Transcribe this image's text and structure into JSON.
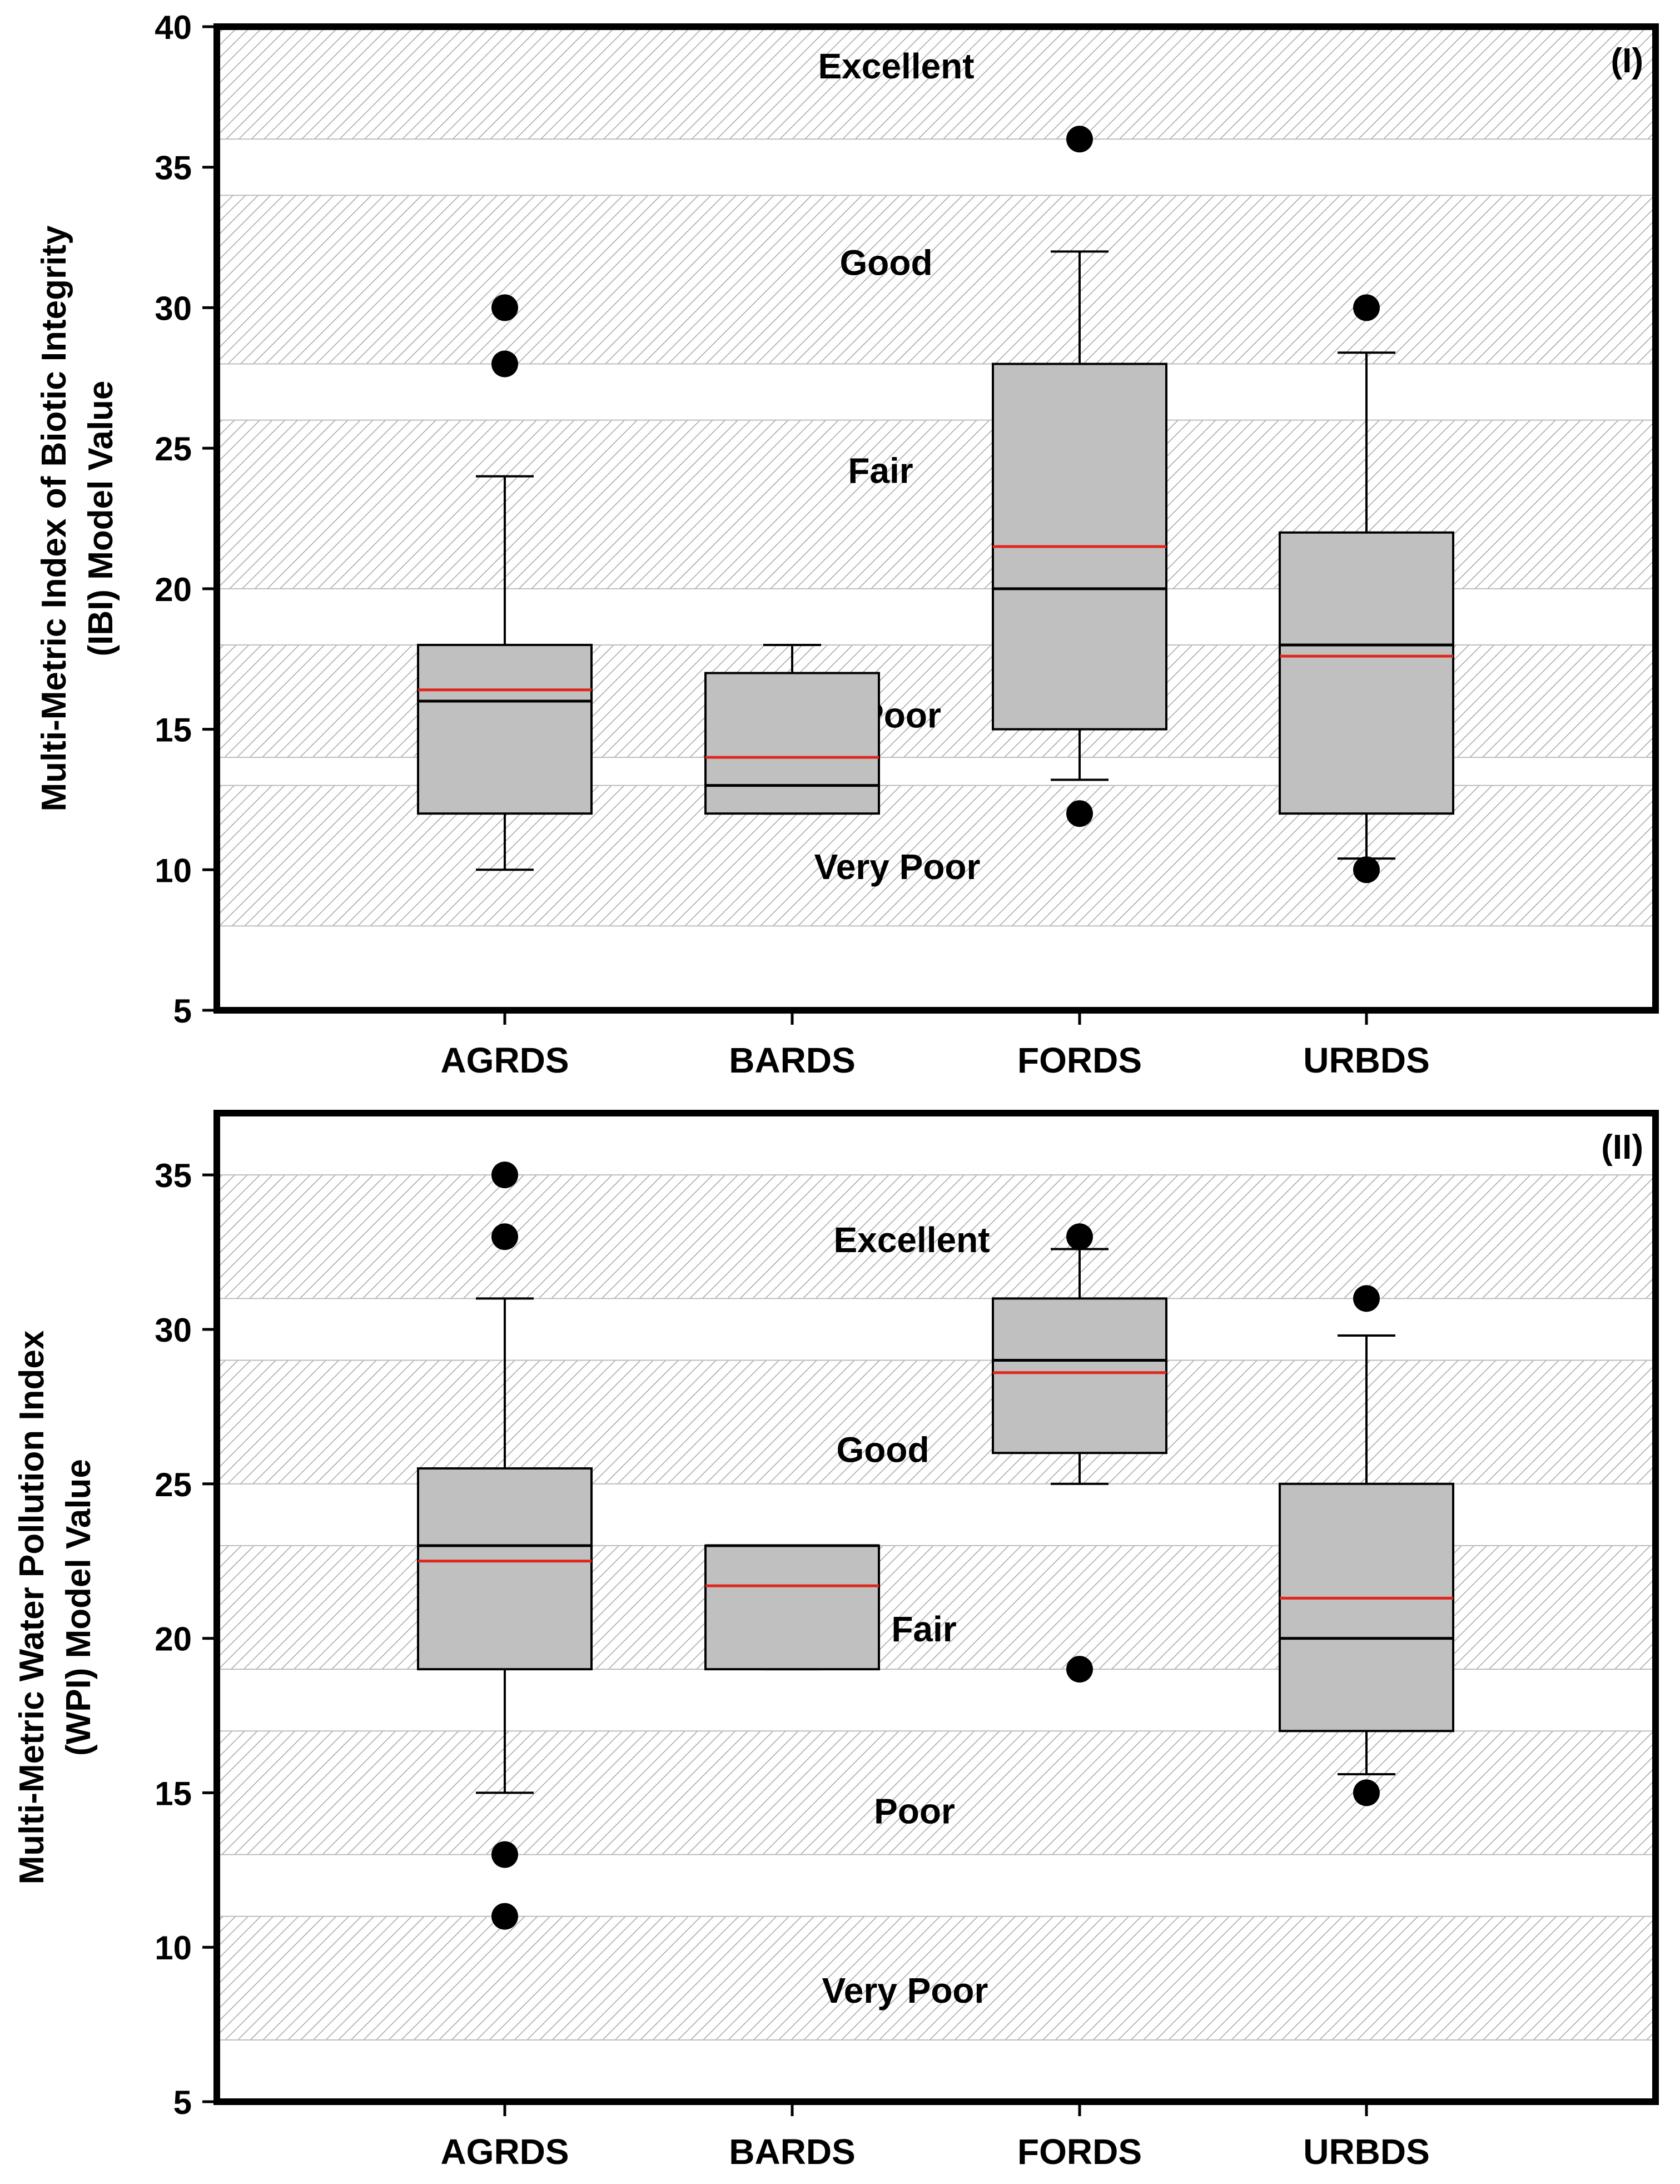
{
  "chart_data": [
    {
      "type": "box",
      "panel_label": "(I)",
      "ylabel": "Multi-Metric Index of Biotic Integrity (IBI) Model Value",
      "ylim": [
        5,
        40
      ],
      "yticks": [
        5,
        10,
        15,
        20,
        25,
        30,
        35,
        40
      ],
      "categories": [
        "AGRDS",
        "BARDS",
        "FORDS",
        "URBDS"
      ],
      "bands": [
        {
          "label": "Excellent",
          "from": 36,
          "to": 40
        },
        {
          "label": "Good",
          "from": 28,
          "to": 34
        },
        {
          "label": "Fair",
          "from": 20,
          "to": 26
        },
        {
          "label": "Poor",
          "from": 14,
          "to": 18
        },
        {
          "label": "Very Poor",
          "from": 8,
          "to": 13
        }
      ],
      "boxes": [
        {
          "category": "AGRDS",
          "whisker_low": 10,
          "q1": 12,
          "median": 16,
          "mean": 16.4,
          "q3": 18,
          "whisker_high": 24,
          "outliers": [
            28,
            30
          ]
        },
        {
          "category": "BARDS",
          "whisker_low": 12,
          "q1": 12,
          "median": 13,
          "mean": 14,
          "q3": 17,
          "whisker_high": 18,
          "outliers": []
        },
        {
          "category": "FORDS",
          "whisker_low": 13.2,
          "q1": 15,
          "median": 20,
          "mean": 21.5,
          "q3": 28,
          "whisker_high": 32,
          "outliers": [
            12,
            36
          ]
        },
        {
          "category": "URBDS",
          "whisker_low": 10.4,
          "q1": 12,
          "median": 18,
          "mean": 17.6,
          "q3": 22,
          "whisker_high": 28.4,
          "outliers": [
            10,
            30
          ]
        }
      ],
      "median_color": "#000000",
      "mean_color": "#e0261c",
      "box_fill": "#c0c0c0"
    },
    {
      "type": "box",
      "panel_label": "(II)",
      "ylabel": "Multi-Metric Water Pollution Index (WPI) Model Value",
      "ylim": [
        5,
        37
      ],
      "yticks": [
        5,
        10,
        15,
        20,
        25,
        30,
        35
      ],
      "categories": [
        "AGRDS",
        "BARDS",
        "FORDS",
        "URBDS"
      ],
      "bands": [
        {
          "label": "Excellent",
          "from": 31,
          "to": 35
        },
        {
          "label": "Good",
          "from": 25,
          "to": 29
        },
        {
          "label": "Fair",
          "from": 19,
          "to": 23
        },
        {
          "label": "Poor",
          "from": 13,
          "to": 17
        },
        {
          "label": "Very Poor",
          "from": 7,
          "to": 11
        }
      ],
      "boxes": [
        {
          "category": "AGRDS",
          "whisker_low": 15,
          "q1": 19,
          "median": 23,
          "mean": 22.5,
          "q3": 25.5,
          "whisker_high": 31,
          "outliers": [
            11,
            13,
            33,
            35
          ]
        },
        {
          "category": "BARDS",
          "whisker_low": 19,
          "q1": 19,
          "median": 23,
          "mean": 21.7,
          "q3": 23,
          "whisker_high": 23,
          "outliers": []
        },
        {
          "category": "FORDS",
          "whisker_low": 25,
          "q1": 26,
          "median": 29,
          "mean": 28.6,
          "q3": 31,
          "whisker_high": 32.6,
          "outliers": [
            19,
            33
          ]
        },
        {
          "category": "URBDS",
          "whisker_low": 15.6,
          "q1": 17,
          "median": 20,
          "mean": 21.3,
          "q3": 25,
          "whisker_high": 29.8,
          "outliers": [
            15,
            31
          ]
        }
      ],
      "median_color": "#000000",
      "mean_color": "#e0261c",
      "box_fill": "#c0c0c0"
    }
  ]
}
